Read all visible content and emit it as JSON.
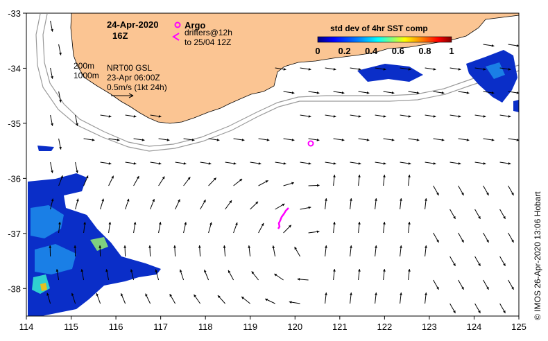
{
  "header": {
    "date": "24-Apr-2020",
    "time": "16Z"
  },
  "legend": {
    "argo_label": "Argo",
    "drifters_line1": "drifters@12h",
    "drifters_line2": "to 25/04 12Z",
    "argo_color": "#ff00ff",
    "drifter_color": "#ff00ff"
  },
  "depth_labels": {
    "contour_200": "200m",
    "contour_1000": "1000m"
  },
  "altimetry": {
    "line1": "NRT00 GSL",
    "line2": "23-Apr 06:00Z",
    "scale_label": "0.5m/s (1kt 24h)"
  },
  "colorbar": {
    "title": "std dev of 4hr SST comp",
    "ticks": [
      "0",
      "0.2",
      "0.4",
      "0.6",
      "0.8",
      "1"
    ],
    "colors": [
      "#00007f",
      "#0000ff",
      "#007fff",
      "#00ffff",
      "#7fff7f",
      "#ffff00",
      "#ff7f00",
      "#ff0000",
      "#7f0000"
    ]
  },
  "axes": {
    "x_ticks": [
      "114",
      "115",
      "116",
      "117",
      "118",
      "119",
      "120",
      "121",
      "122",
      "123",
      "124",
      "125"
    ],
    "y_ticks": [
      "-33",
      "-34",
      "-35",
      "-36",
      "-37",
      "-38"
    ],
    "xlim": [
      114,
      125
    ],
    "ylim": [
      -38.5,
      -33
    ]
  },
  "credit": "©  IMOS 26-Apr-2020 13:06 Hobart",
  "colors": {
    "land": "#fbc593",
    "isobath": "#9a9a9a",
    "ocean": "#ffffff"
  }
}
